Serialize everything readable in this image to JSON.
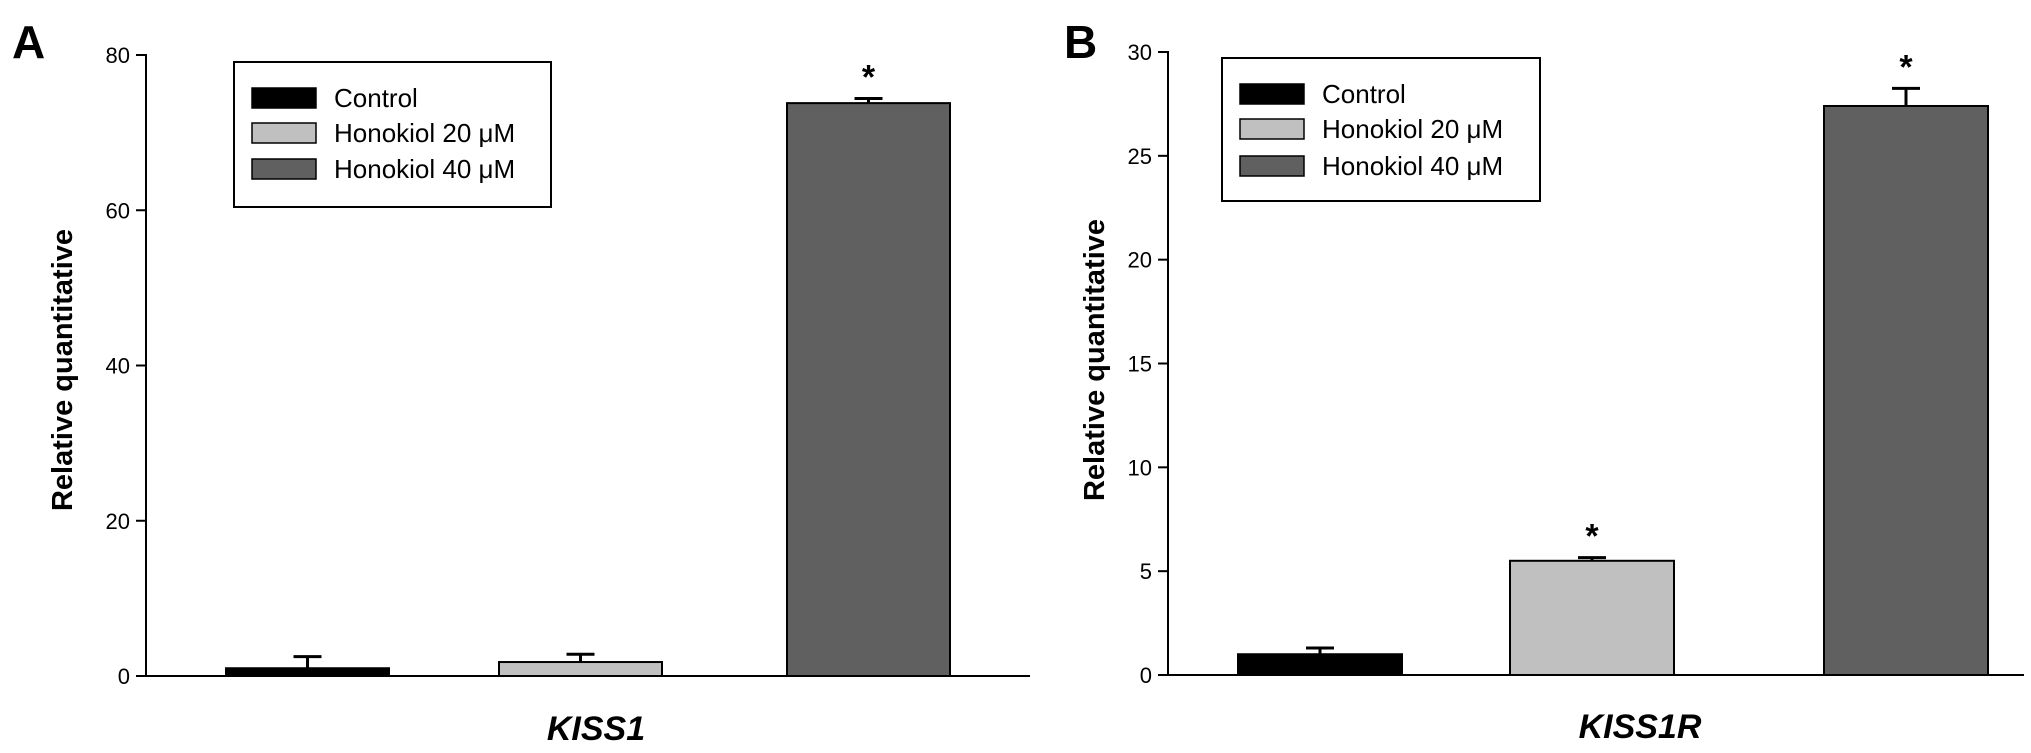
{
  "chart_data": [
    {
      "type": "bar",
      "panel": "A",
      "categories": [
        "Control",
        "Honokiol 20 μM",
        "Honokiol 40 μM"
      ],
      "series": [
        {
          "name": "Control",
          "color": "#000000",
          "value": 1.0,
          "error": 1.5,
          "significant": false
        },
        {
          "name": "Honokiol 20 μM",
          "color": "#c0c0c0",
          "value": 1.8,
          "error": 1.0,
          "significant": false
        },
        {
          "name": "Honokiol 40 μM",
          "color": "#606060",
          "value": 73.8,
          "error": 0.6,
          "significant": true
        }
      ],
      "significance_marker": "*",
      "xlabel": "KISS1",
      "ylabel": "Relative quantitative",
      "ylim": [
        0,
        80
      ],
      "yticks": [
        0,
        20,
        40,
        60,
        80
      ],
      "grid": false,
      "legend_position": "top-left"
    },
    {
      "type": "bar",
      "panel": "B",
      "categories": [
        "Control",
        "Honokiol 20 μM",
        "Honokiol 40 μM"
      ],
      "series": [
        {
          "name": "Control",
          "color": "#000000",
          "value": 1.0,
          "error": 0.3,
          "significant": false
        },
        {
          "name": "Honokiol 20 μM",
          "color": "#c0c0c0",
          "value": 5.5,
          "error": 0.15,
          "significant": true
        },
        {
          "name": "Honokiol 40 μM",
          "color": "#606060",
          "value": 27.4,
          "error": 0.85,
          "significant": true
        }
      ],
      "significance_marker": "*",
      "xlabel": "KISS1R",
      "ylabel": "Relative quantitative",
      "ylim": [
        0,
        30
      ],
      "yticks": [
        0,
        5,
        10,
        15,
        20,
        25,
        30
      ],
      "grid": false,
      "legend_position": "top-left"
    }
  ]
}
